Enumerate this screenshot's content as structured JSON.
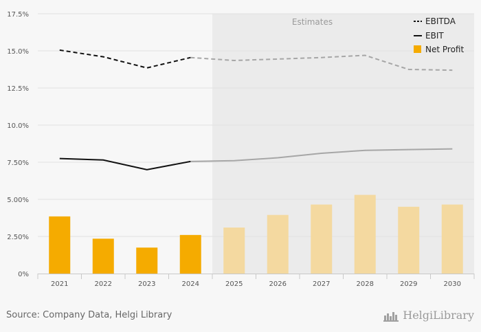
{
  "chart_data": {
    "type": "bar",
    "categories": [
      "2021",
      "2022",
      "2023",
      "2024",
      "2025",
      "2026",
      "2027",
      "2028",
      "2029",
      "2030"
    ],
    "estimates_from_index": 4,
    "estimates_label": "Estimates",
    "ylim": [
      0,
      17.5
    ],
    "y_ticks": [
      0,
      2.5,
      5.0,
      7.5,
      10.0,
      12.5,
      15.0,
      17.5
    ],
    "y_tick_labels": [
      "0%",
      "2.50%",
      "5.00%",
      "7.50%",
      "10.0%",
      "12.5%",
      "15.0%",
      "17.5%"
    ],
    "series": [
      {
        "name": "EBITDA",
        "type": "line",
        "style": "dashed",
        "values": [
          15.05,
          14.6,
          13.85,
          14.55,
          14.35,
          14.45,
          14.55,
          14.7,
          13.75,
          13.7
        ]
      },
      {
        "name": "EBIT",
        "type": "line",
        "style": "solid",
        "values": [
          7.75,
          7.65,
          7.0,
          7.55,
          7.6,
          7.8,
          8.1,
          8.3,
          8.35,
          8.4
        ]
      },
      {
        "name": "Net Profit",
        "type": "bar",
        "values": [
          3.85,
          2.35,
          1.75,
          2.6,
          3.1,
          3.95,
          4.65,
          5.3,
          4.5,
          4.65
        ]
      }
    ],
    "colors": {
      "bar_actual": "#f5ab00",
      "bar_estimate": "#f4d9a0",
      "line_actual": "#111111",
      "line_estimate": "#a6a6a6",
      "estimates_bg": "#ebebeb",
      "plot_bg": "#f7f7f7",
      "grid": "#e2e2e2"
    }
  },
  "legend": {
    "items": [
      {
        "label": "EBITDA",
        "icon": "dashed-line-icon"
      },
      {
        "label": "EBIT",
        "icon": "solid-line-icon"
      },
      {
        "label": "Net Profit",
        "icon": "orange-square-icon"
      }
    ]
  },
  "footer": {
    "source": "Source: Company Data, Helgi Library",
    "brand": "HelgiLibrary"
  }
}
